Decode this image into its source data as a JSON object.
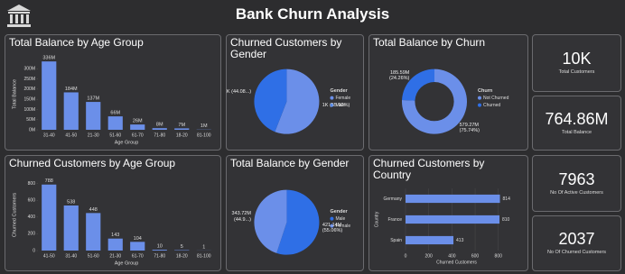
{
  "header": {
    "title": "Bank Churn Analysis"
  },
  "kpis": [
    {
      "value": "10K",
      "label": "Total Customers"
    },
    {
      "value": "764.86M",
      "label": "Total Balance"
    },
    {
      "value": 7963,
      "label": "No Of Active Customers"
    },
    {
      "value": 2037,
      "label": "No Of Churned Customers"
    }
  ],
  "chart_data": [
    {
      "type": "bar",
      "title": "Total Balance by Age Group",
      "x_label": "Age Group",
      "y_label": "Total Balance",
      "categories": [
        "31-40",
        "41-50",
        "21-30",
        "51-60",
        "61-70",
        "71-80",
        "18-20",
        "81-100"
      ],
      "values": [
        336,
        184,
        137,
        66,
        26,
        8,
        7,
        1
      ],
      "value_labels": [
        "336M",
        "184M",
        "137M",
        "66M",
        "26M",
        "8M",
        "7M",
        "1M"
      ],
      "color": "#6b8fe9",
      "ylim": [
        0,
        350
      ],
      "yticks": [
        {
          "value": 0,
          "label": "0M"
        },
        {
          "value": 50,
          "label": "50M"
        },
        {
          "value": 100,
          "label": "100M"
        },
        {
          "value": 150,
          "label": "150M"
        },
        {
          "value": 200,
          "label": "200M"
        },
        {
          "value": 250,
          "label": "250M"
        },
        {
          "value": 300,
          "label": "300M"
        }
      ]
    },
    {
      "type": "pie",
      "title": "Churned Customers by Gender",
      "legend_title": "Gender",
      "categories": [
        "Female",
        "Male"
      ],
      "values": [
        55.92,
        44.08
      ],
      "value_labels": [
        "1K (55.92%)",
        "1K (44.08...)"
      ],
      "colors": [
        "#6b8fe9",
        "#2f6fe6"
      ]
    },
    {
      "type": "donut",
      "title": "Total Balance by Churn",
      "legend_title": "Churn",
      "categories": [
        "Not Churned",
        "Churned"
      ],
      "values": [
        579.27,
        185.59
      ],
      "value_labels": [
        "579.27M (75.74%)",
        "185.59M (24.26%)"
      ],
      "colors": [
        "#6b8fe9",
        "#2f6fe6"
      ]
    },
    {
      "type": "bar",
      "title": "Churned Customers by Age Group",
      "x_label": "Age Group",
      "y_label": "Churned Customers",
      "categories": [
        "41-50",
        "31-40",
        "51-60",
        "21-30",
        "61-70",
        "71-80",
        "18-20",
        "81-100"
      ],
      "values": [
        788,
        538,
        448,
        143,
        104,
        10,
        5,
        1
      ],
      "color": "#6b8fe9",
      "ylim": [
        0,
        850
      ],
      "yticks": [
        0,
        200,
        400,
        600,
        800
      ]
    },
    {
      "type": "pie",
      "title": "Total Balance by Gender",
      "legend_title": "Gender",
      "categories": [
        "Male",
        "Female"
      ],
      "values": [
        421.14,
        343.72
      ],
      "value_labels": [
        "421.14M (55.06%)",
        "343.72M (44.9...)"
      ],
      "colors": [
        "#2f6fe6",
        "#6b8fe9"
      ]
    },
    {
      "type": "hbar",
      "title": "Churned Customers by Country",
      "x_label": "Churned Customers",
      "y_label": "Country",
      "categories": [
        "Germany",
        "France",
        "Spain"
      ],
      "values": [
        814,
        810,
        413
      ],
      "color": "#6b8fe9",
      "xlim": [
        0,
        880
      ],
      "xticks": [
        0,
        200,
        400,
        600,
        800
      ]
    }
  ]
}
